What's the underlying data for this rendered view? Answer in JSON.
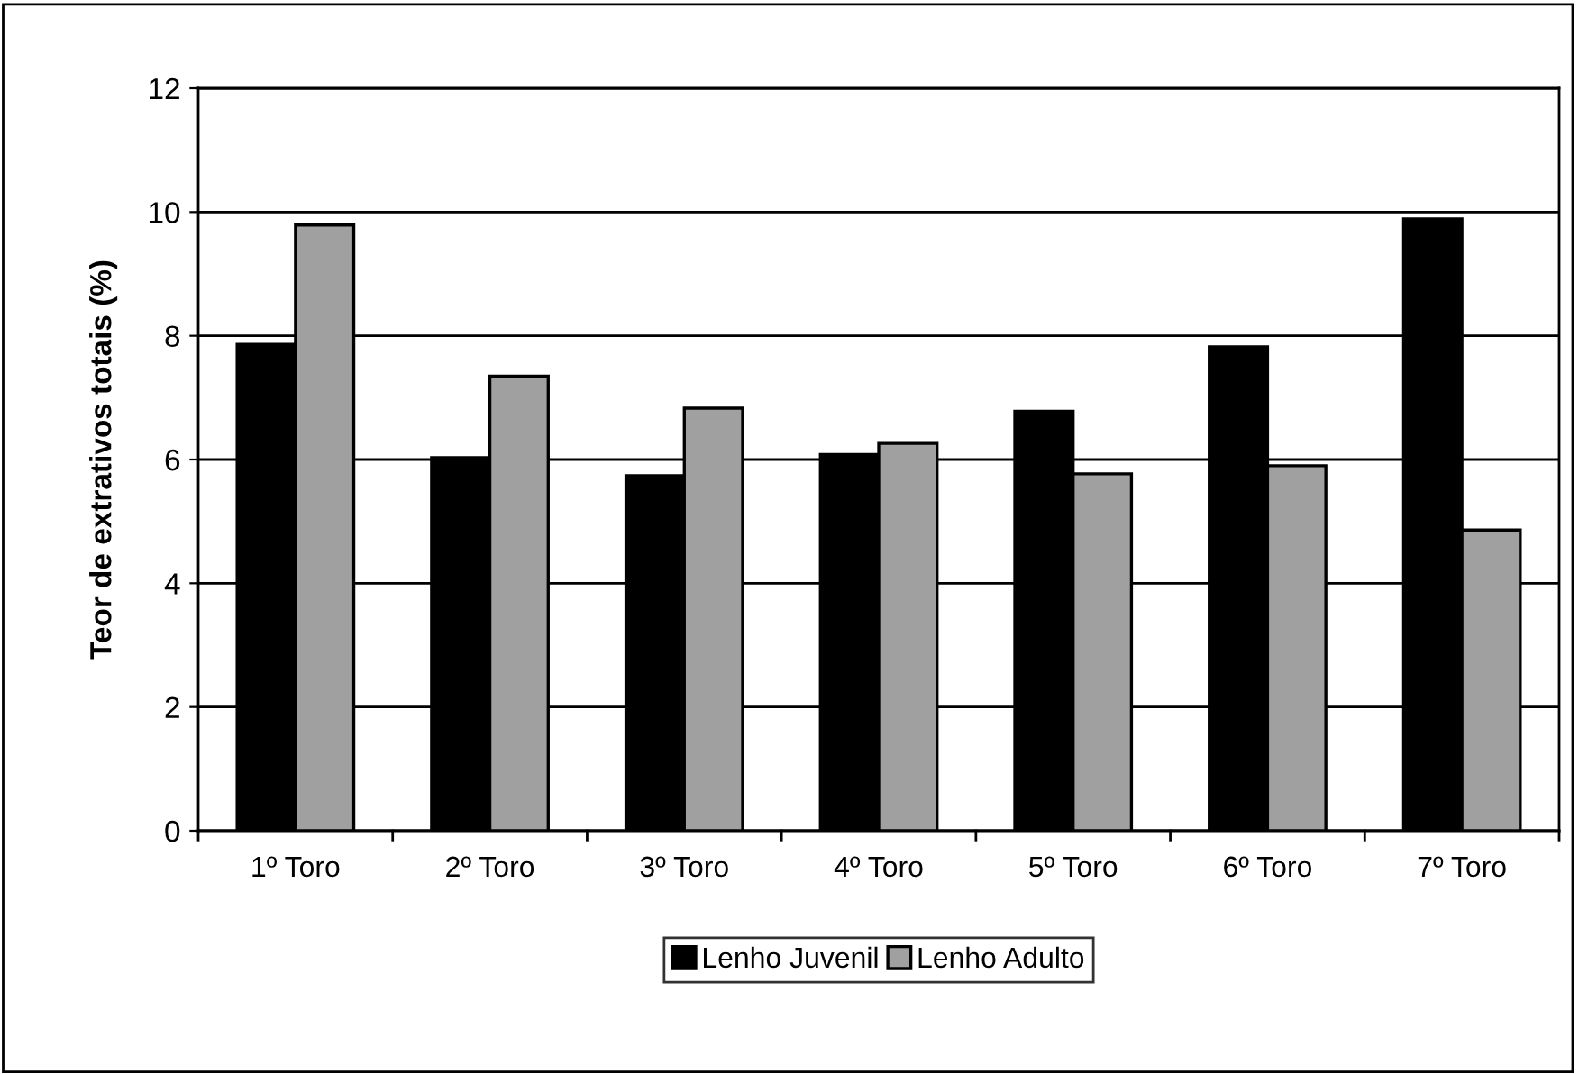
{
  "chart_data": {
    "type": "bar",
    "ylabel": "Teor de extrativos totais (%)",
    "categories": [
      "1º Toro",
      "2º Toro",
      "3º Toro",
      "4º Toro",
      "5º Toro",
      "6º Toro",
      "7º Toro"
    ],
    "series": [
      {
        "name": "Lenho Juvenil",
        "color": "#000000",
        "values": [
          7.86,
          6.03,
          5.74,
          6.08,
          6.78,
          7.82,
          9.89
        ]
      },
      {
        "name": "Lenho Adulto",
        "color": "#a0a0a0",
        "values": [
          9.79,
          7.35,
          6.83,
          6.26,
          5.77,
          5.9,
          4.86
        ]
      }
    ],
    "ylim": [
      0,
      12
    ],
    "yticks": [
      0,
      2,
      4,
      6,
      8,
      10,
      12
    ],
    "grid": "y",
    "legend": "bottom"
  }
}
